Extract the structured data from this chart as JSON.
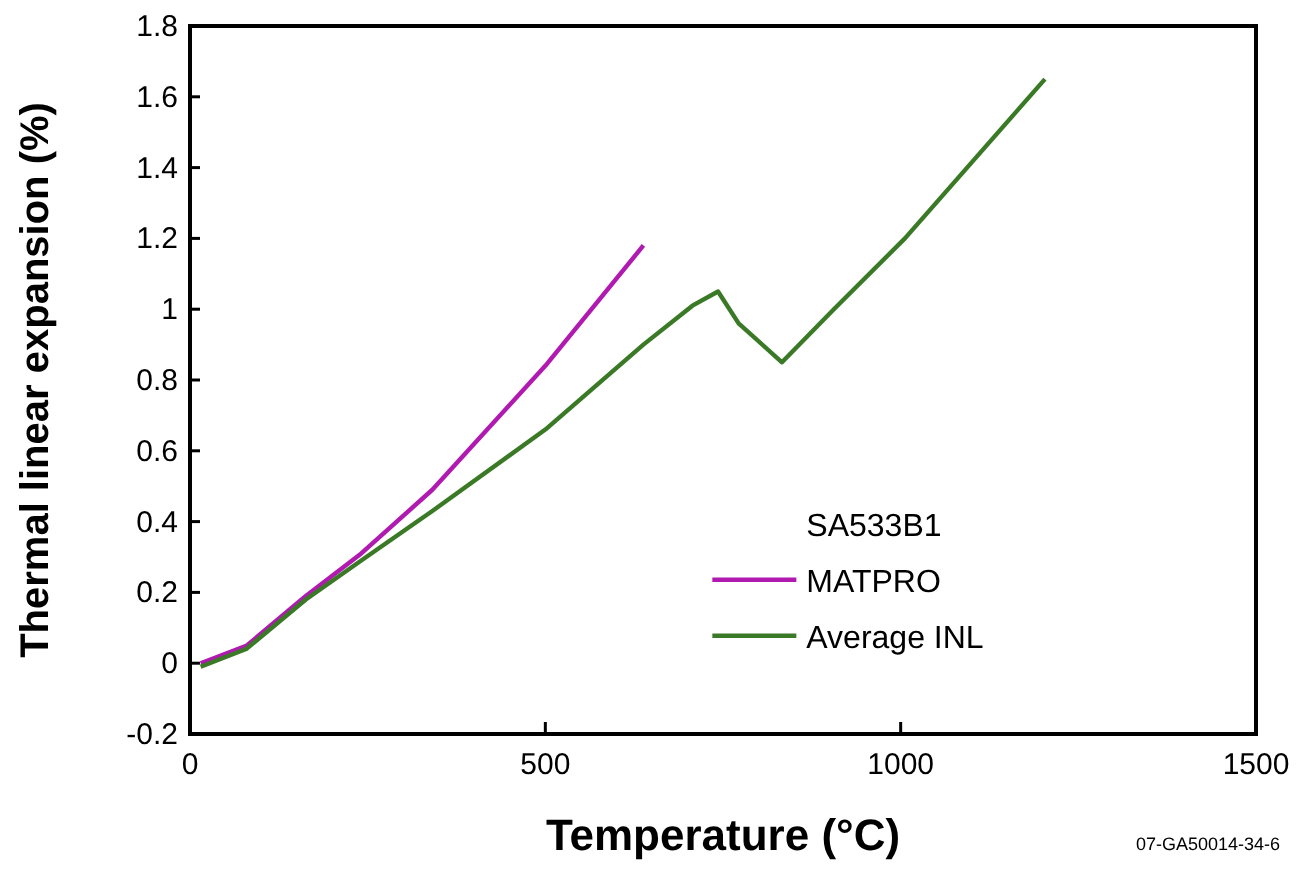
{
  "chart_data": {
    "type": "line",
    "xlabel": "Temperature (°C)",
    "ylabel": "Thermal linear expansion (%)",
    "legend_title": "SA533B1",
    "legend": "bottom right",
    "annotations": [
      "07-GA50014-34-6"
    ],
    "xlim": [
      0,
      1500
    ],
    "xticks": [
      0,
      500,
      1000,
      1500
    ],
    "ylim": [
      -0.2,
      1.8
    ],
    "yticks": [
      -0.2,
      0,
      0.2,
      0.4,
      0.6,
      0.8,
      1,
      1.2,
      1.4,
      1.6,
      1.8
    ],
    "grid": false,
    "marker": "none",
    "line_style": "solid",
    "series": [
      {
        "name": "MATPRO",
        "color": "#b01ab0",
        "x": [
          15,
          80,
          163,
          241,
          341,
          500,
          638
        ],
        "values": [
          0,
          0.05,
          0.19,
          0.31,
          0.49,
          0.84,
          1.18
        ]
      },
      {
        "name": "Average INL",
        "color": "#3a7a26",
        "x": [
          15,
          79,
          163,
          241,
          341,
          500,
          638,
          707,
          743,
          772,
          833,
          906,
          1006,
          1203
        ],
        "values": [
          -0.01,
          0.04,
          0.18,
          0.29,
          0.43,
          0.66,
          0.9,
          1.01,
          1.05,
          0.96,
          0.85,
          1,
          1.2,
          1.65
        ]
      }
    ]
  }
}
